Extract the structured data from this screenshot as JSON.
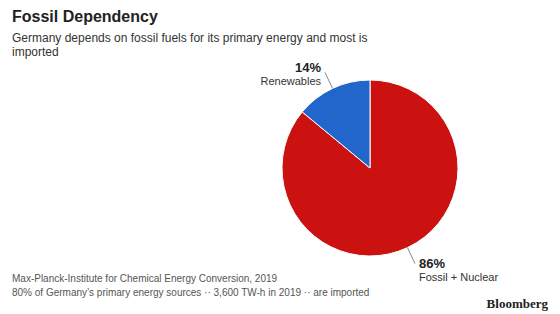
{
  "chart_data": {
    "type": "pie",
    "title": "Fossil Dependency",
    "subtitle": "Germany depends on fossil fuels for its primary energy and most is\nimported",
    "categories": [
      "Fossil + Nuclear",
      "Renewables"
    ],
    "values": [
      86,
      14
    ],
    "value_labels": [
      "86%",
      "14%"
    ],
    "colors": [
      "#cc1111",
      "#2266cc"
    ],
    "data_labels": true,
    "annotations": [
      "Max-Planck-Institute for Chemical Energy Conversion, 2019",
      "80% of Germany’s primary energy sources ·· 3,600 TW-h in 2019 ·· are imported",
      "Bloomberg"
    ]
  }
}
